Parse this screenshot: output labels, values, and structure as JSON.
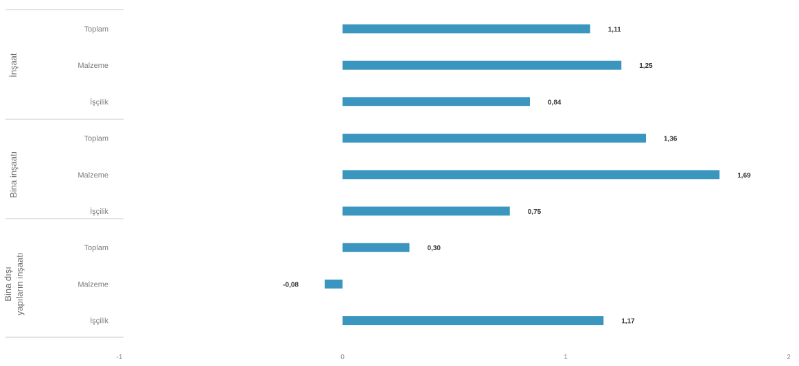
{
  "chart_data": {
    "type": "bar",
    "orientation": "horizontal",
    "groups": [
      {
        "name": "İnşaat",
        "categories": [
          "Toplam",
          "Malzeme",
          "İşçilik"
        ],
        "values": [
          1.11,
          1.25,
          0.84
        ],
        "value_labels": [
          "1,11",
          "1,25",
          "0,84"
        ]
      },
      {
        "name": "Bina inşaatı",
        "categories": [
          "Toplam",
          "Malzeme",
          "İşçilik"
        ],
        "values": [
          1.36,
          1.69,
          0.75
        ],
        "value_labels": [
          "1,36",
          "1,69",
          "0,75"
        ]
      },
      {
        "name_lines": [
          "Bina dışı",
          "yapıların inşaatı"
        ],
        "categories": [
          "Toplam",
          "Malzeme",
          "İşçilik"
        ],
        "values": [
          0.3,
          -0.08,
          1.17
        ],
        "value_labels": [
          "0,30",
          "-0,08",
          "1,17"
        ]
      }
    ],
    "xlim": [
      -1,
      2
    ],
    "xticks": [
      -1,
      0,
      1,
      2
    ],
    "xtick_labels": [
      "-1",
      "0",
      "1",
      "2"
    ],
    "bar_color": "#3a95bf",
    "grid": false
  }
}
